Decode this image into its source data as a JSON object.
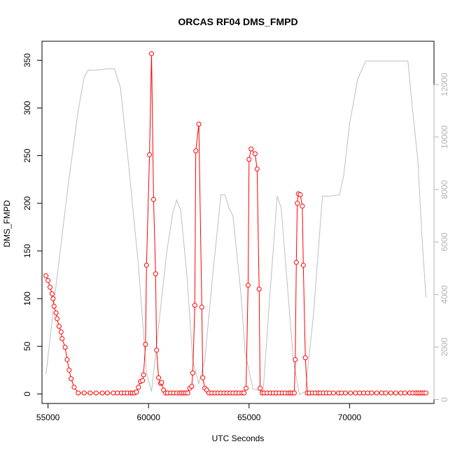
{
  "chart_data": {
    "type": "line",
    "title": "ORCAS RF04 DMS_FMPD",
    "xlabel": "UTC Seconds",
    "ylabel": "DMS_FMPD",
    "xlim": [
      54700,
      74200
    ],
    "ylim": [
      -10,
      370
    ],
    "y2lim": [
      -150,
      13650
    ],
    "x_ticks": [
      55000,
      60000,
      65000,
      70000
    ],
    "y_ticks": [
      0,
      50,
      100,
      150,
      200,
      250,
      300,
      350
    ],
    "y2_ticks": [
      0,
      2000,
      4000,
      6000,
      8000,
      10000,
      12000
    ],
    "grid": false,
    "legend": "none",
    "colors": {
      "primary": "#ff0000",
      "secondary": "#bebebe",
      "axis": "#000000",
      "secondary_axis": "#b3b3b3"
    },
    "series": [
      {
        "axis": "left",
        "style": "points+line",
        "color": "#ff0000",
        "points": [
          [
            54900,
            124
          ],
          [
            55000,
            119
          ],
          [
            55100,
            112
          ],
          [
            55200,
            105
          ],
          [
            55250,
            100
          ],
          [
            55300,
            92
          ],
          [
            55400,
            85
          ],
          [
            55450,
            79
          ],
          [
            55550,
            71
          ],
          [
            55650,
            65
          ],
          [
            55700,
            58
          ],
          [
            55850,
            49
          ],
          [
            55950,
            36
          ],
          [
            56050,
            25
          ],
          [
            56150,
            16
          ],
          [
            56300,
            7
          ],
          [
            56500,
            1
          ],
          [
            56800,
            1
          ],
          [
            57100,
            1
          ],
          [
            57400,
            1
          ],
          [
            57700,
            1
          ],
          [
            57950,
            1
          ],
          [
            58250,
            1
          ],
          [
            58450,
            1
          ],
          [
            58650,
            1
          ],
          [
            58800,
            1
          ],
          [
            58950,
            1
          ],
          [
            59100,
            1
          ],
          [
            59200,
            1
          ],
          [
            59300,
            1
          ],
          [
            59400,
            2
          ],
          [
            59500,
            7
          ],
          [
            59600,
            13
          ],
          [
            59700,
            14
          ],
          [
            59750,
            20
          ],
          [
            59850,
            52
          ],
          [
            59900,
            135
          ],
          [
            60050,
            251
          ],
          [
            60150,
            357
          ],
          [
            60250,
            204
          ],
          [
            60350,
            126
          ],
          [
            60400,
            46
          ],
          [
            60500,
            17
          ],
          [
            60600,
            11
          ],
          [
            60650,
            12
          ],
          [
            60750,
            4
          ],
          [
            60850,
            1
          ],
          [
            60950,
            1
          ],
          [
            61100,
            1
          ],
          [
            61250,
            1
          ],
          [
            61400,
            1
          ],
          [
            61550,
            1
          ],
          [
            61650,
            1
          ],
          [
            61750,
            1
          ],
          [
            61850,
            1
          ],
          [
            61950,
            1
          ],
          [
            62050,
            6
          ],
          [
            62150,
            8
          ],
          [
            62200,
            22
          ],
          [
            62300,
            93
          ],
          [
            62350,
            255
          ],
          [
            62500,
            283
          ],
          [
            62650,
            91
          ],
          [
            62700,
            17
          ],
          [
            62800,
            6
          ],
          [
            62900,
            4
          ],
          [
            63000,
            1
          ],
          [
            63150,
            1
          ],
          [
            63300,
            1
          ],
          [
            63450,
            1
          ],
          [
            63600,
            1
          ],
          [
            63750,
            1
          ],
          [
            63900,
            1
          ],
          [
            64050,
            1
          ],
          [
            64200,
            1
          ],
          [
            64350,
            1
          ],
          [
            64500,
            1
          ],
          [
            64650,
            1
          ],
          [
            64750,
            1
          ],
          [
            64850,
            6
          ],
          [
            64950,
            114
          ],
          [
            65000,
            246
          ],
          [
            65100,
            257
          ],
          [
            65300,
            252
          ],
          [
            65400,
            236
          ],
          [
            65500,
            110
          ],
          [
            65550,
            6
          ],
          [
            65650,
            1
          ],
          [
            65750,
            1
          ],
          [
            65900,
            1
          ],
          [
            66050,
            1
          ],
          [
            66200,
            1
          ],
          [
            66350,
            1
          ],
          [
            66500,
            1
          ],
          [
            66650,
            1
          ],
          [
            66800,
            1
          ],
          [
            66950,
            1
          ],
          [
            67050,
            1
          ],
          [
            67150,
            1
          ],
          [
            67250,
            1
          ],
          [
            67300,
            36
          ],
          [
            67350,
            138
          ],
          [
            67400,
            200
          ],
          [
            67450,
            210
          ],
          [
            67550,
            209
          ],
          [
            67650,
            197
          ],
          [
            67700,
            135
          ],
          [
            67800,
            38
          ],
          [
            67900,
            1
          ],
          [
            68000,
            1
          ],
          [
            68150,
            1
          ],
          [
            68300,
            1
          ],
          [
            68450,
            1
          ],
          [
            68550,
            1
          ],
          [
            68700,
            1
          ],
          [
            68850,
            1
          ],
          [
            69000,
            1
          ],
          [
            69200,
            1
          ],
          [
            69450,
            1
          ],
          [
            69600,
            1
          ],
          [
            69800,
            1
          ],
          [
            70050,
            1
          ],
          [
            70300,
            1
          ],
          [
            70500,
            1
          ],
          [
            70700,
            1
          ],
          [
            70900,
            1
          ],
          [
            71100,
            1
          ],
          [
            71350,
            1
          ],
          [
            71600,
            1
          ],
          [
            71800,
            1
          ],
          [
            72050,
            1
          ],
          [
            72300,
            1
          ],
          [
            72550,
            1
          ],
          [
            72750,
            1
          ],
          [
            73000,
            1
          ],
          [
            73150,
            1
          ],
          [
            73300,
            1
          ],
          [
            73400,
            1
          ],
          [
            73500,
            1
          ],
          [
            73600,
            1
          ],
          [
            73700,
            1
          ],
          [
            73800,
            1
          ]
        ]
      },
      {
        "axis": "right",
        "style": "line",
        "color": "#bebebe",
        "points": [
          [
            54900,
            950
          ],
          [
            55400,
            4350
          ],
          [
            56000,
            8150
          ],
          [
            56500,
            11000
          ],
          [
            56800,
            12300
          ],
          [
            57000,
            12550
          ],
          [
            57400,
            12550
          ],
          [
            58000,
            12600
          ],
          [
            58300,
            12600
          ],
          [
            58600,
            11900
          ],
          [
            59000,
            9000
          ],
          [
            59500,
            5100
          ],
          [
            59900,
            1000
          ],
          [
            60150,
            300
          ],
          [
            60500,
            2800
          ],
          [
            60900,
            5600
          ],
          [
            61200,
            7100
          ],
          [
            61400,
            7600
          ],
          [
            61600,
            7200
          ],
          [
            61900,
            4800
          ],
          [
            62200,
            1500
          ],
          [
            62500,
            600
          ],
          [
            62800,
            1500
          ],
          [
            63200,
            4800
          ],
          [
            63600,
            7800
          ],
          [
            63800,
            7800
          ],
          [
            64000,
            7300
          ],
          [
            64200,
            7000
          ],
          [
            64600,
            4000
          ],
          [
            64800,
            1800
          ],
          [
            65200,
            400
          ],
          [
            65700,
            300
          ],
          [
            66000,
            3600
          ],
          [
            66400,
            7750
          ],
          [
            66600,
            7300
          ],
          [
            66900,
            4400
          ],
          [
            67200,
            1500
          ],
          [
            67500,
            200
          ],
          [
            67800,
            300
          ],
          [
            68200,
            3200
          ],
          [
            68650,
            7750
          ],
          [
            69000,
            7750
          ],
          [
            69500,
            7800
          ],
          [
            69700,
            8500
          ],
          [
            70000,
            10500
          ],
          [
            70400,
            12200
          ],
          [
            70800,
            12900
          ],
          [
            71300,
            12900
          ],
          [
            72200,
            12900
          ],
          [
            72900,
            12900
          ],
          [
            73100,
            11300
          ],
          [
            73400,
            9100
          ],
          [
            73600,
            6200
          ],
          [
            73800,
            3900
          ]
        ]
      }
    ]
  }
}
